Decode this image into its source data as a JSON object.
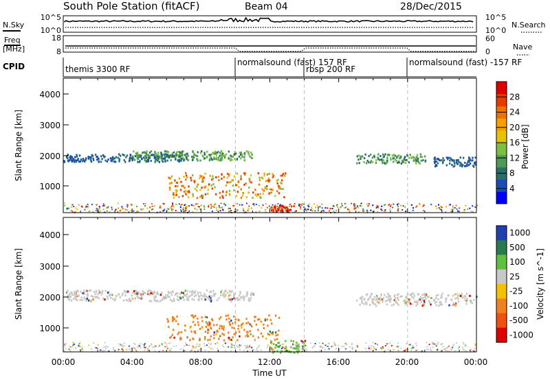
{
  "header": {
    "station": "South Pole Station (fitACF)",
    "beam": "Beam 04",
    "date": "28/Dec/2015"
  },
  "strip_labels": {
    "nsky": "N.Sky",
    "nsearch": "N.Search",
    "freq_line1": "Freq",
    "freq_line2": "[MHz]",
    "nave": "Nave",
    "cpid": "CPID"
  },
  "chart_data": [
    {
      "type": "line",
      "name": "noise-strip",
      "left_ticks": [
        "10^5",
        "10^0"
      ],
      "right_ticks": [
        "10^5",
        "10^0"
      ],
      "series": [
        {
          "name": "N.Sky",
          "style": "solid"
        },
        {
          "name": "N.Search",
          "style": "dotted"
        }
      ]
    },
    {
      "type": "line",
      "name": "freq-nave-strip",
      "left_ticks": [
        "18",
        "8"
      ],
      "right_ticks": [
        "60",
        "0"
      ],
      "series": [
        {
          "name": "Freq",
          "style": "solid",
          "value": 12
        },
        {
          "name": "Nave",
          "style": "dotted",
          "segments": [
            {
              "x": [
                "00:00",
                "10:00"
              ],
              "value": 28
            },
            {
              "x": [
                "10:00",
                "14:00"
              ],
              "value": 3
            },
            {
              "x": [
                "14:00",
                "20:00"
              ],
              "value": 28
            },
            {
              "x": [
                "20:00",
                "24:00"
              ],
              "value": 3
            }
          ]
        }
      ]
    },
    {
      "type": "table",
      "name": "cpid-strip",
      "programs": [
        {
          "start": "00:00",
          "label": "themis 3300 RF"
        },
        {
          "start": "10:00",
          "label": "normalsound (fast) 157 RF"
        },
        {
          "start": "14:00",
          "label": "rbsp 200 RF"
        },
        {
          "start": "20:00",
          "label": "normalsound (fast) -157 RF"
        }
      ]
    },
    {
      "type": "heatmap",
      "name": "power-panel",
      "ylabel": "Slant Range [km]",
      "y_ticks": [
        "1000",
        "2000",
        "3000",
        "4000"
      ],
      "ylim": [
        200,
        4500
      ],
      "xlim": [
        "00:00",
        "24:00"
      ],
      "colorbar": {
        "label": "Power [dB]",
        "ticks": [
          "4",
          "8",
          "12",
          "16",
          "20",
          "24",
          "28"
        ],
        "range": [
          0,
          32
        ],
        "colors": [
          "#0000ff",
          "#1a4bb8",
          "#2a6e6a",
          "#4d9955",
          "#7fbf3f",
          "#e6c200",
          "#f5a000",
          "#f07000",
          "#e83a00",
          "#e00000"
        ]
      },
      "features": [
        {
          "start": "00:00",
          "end": "07:00",
          "range": [
            1850,
            2100
          ],
          "level": "low-mid"
        },
        {
          "start": "04:00",
          "end": "11:00",
          "range": [
            1900,
            2200
          ],
          "level": "mid"
        },
        {
          "start": "06:00",
          "end": "13:00",
          "range": [
            700,
            1500
          ],
          "level": "high"
        },
        {
          "start": "12:00",
          "end": "13:30",
          "range": [
            250,
            450
          ],
          "level": "very-high"
        },
        {
          "start": "17:00",
          "end": "21:00",
          "range": [
            1800,
            2100
          ],
          "level": "mid"
        },
        {
          "start": "21:30",
          "end": "24:00",
          "range": [
            1700,
            2000
          ],
          "level": "low-mid"
        }
      ]
    },
    {
      "type": "heatmap",
      "name": "velocity-panel",
      "ylabel": "Slant Range [km]",
      "xlabel": "Time UT",
      "x_ticks": [
        "00:00",
        "04:00",
        "08:00",
        "12:00",
        "16:00",
        "20:00",
        "00:00"
      ],
      "y_ticks": [
        "1000",
        "2000",
        "3000",
        "4000"
      ],
      "ylim": [
        200,
        4500
      ],
      "xlim": [
        "00:00",
        "24:00"
      ],
      "colorbar": {
        "label": "Velocity [m s^-1]",
        "ticks": [
          "1000",
          "500",
          "100",
          "25",
          "-25",
          "-100",
          "-500",
          "-1000"
        ],
        "colors": [
          "#2040b0",
          "#2a7a50",
          "#60c040",
          "#c8c8c8",
          "#f5c000",
          "#f08020",
          "#f05010",
          "#e00000"
        ]
      },
      "features": [
        {
          "start": "00:00",
          "end": "11:00",
          "range": [
            1850,
            2200
          ],
          "class": "near-zero"
        },
        {
          "start": "06:00",
          "end": "12:30",
          "range": [
            600,
            1400
          ],
          "class": "-100"
        },
        {
          "start": "12:00",
          "end": "14:00",
          "range": [
            200,
            600
          ],
          "class": "100"
        },
        {
          "start": "17:00",
          "end": "24:00",
          "range": [
            1700,
            2100
          ],
          "class": "near-zero"
        }
      ]
    }
  ]
}
